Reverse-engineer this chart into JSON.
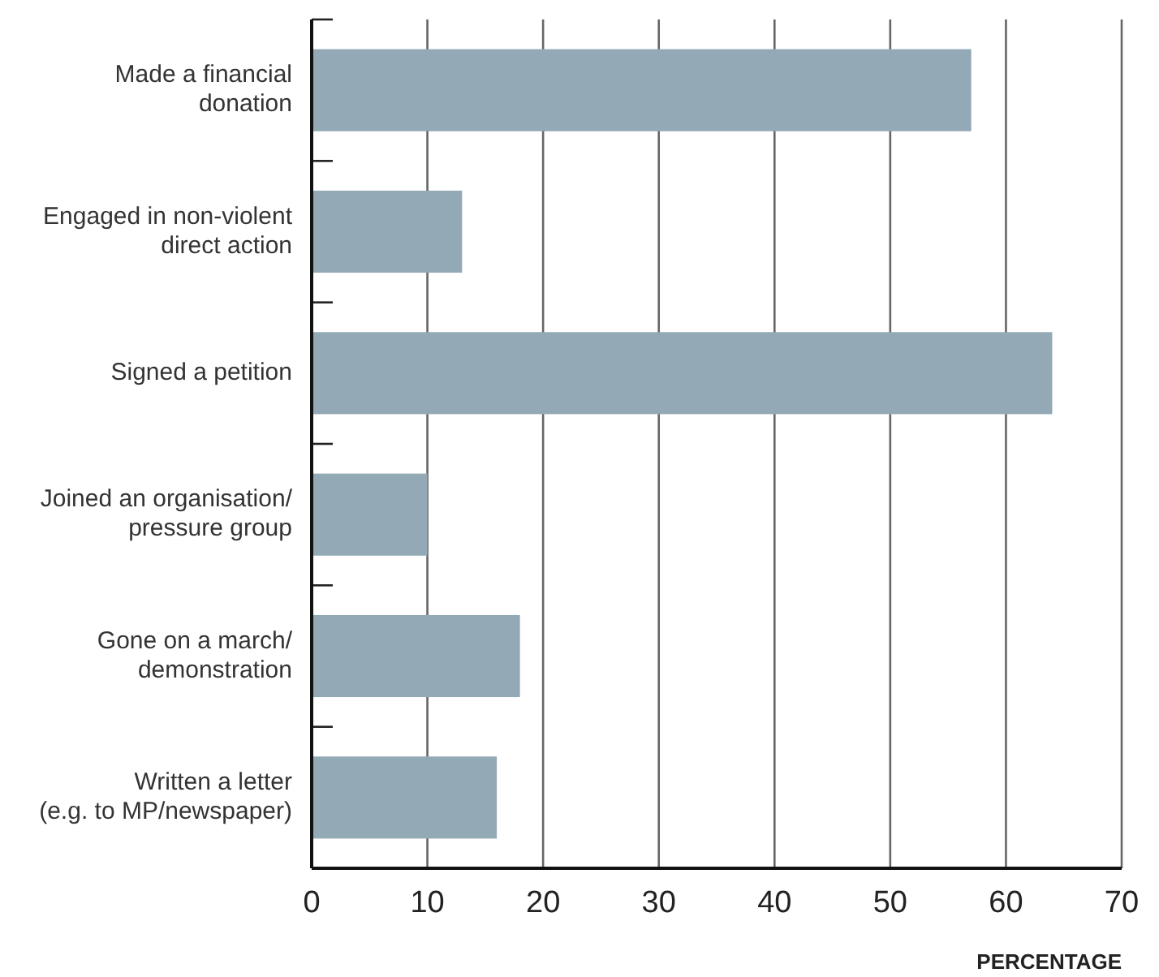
{
  "chart_data": {
    "type": "bar",
    "orientation": "horizontal",
    "xlabel": "PERCENTAGE",
    "categories": [
      "Made a financial\ndonation",
      "Engaged in non-violent\ndirect action",
      "Signed a petition",
      "Joined an organisation/\npressure group",
      "Gone on a march/\ndemonstration",
      "Written a letter\n(e.g. to MP/newspaper)"
    ],
    "values": [
      57,
      13,
      64,
      10,
      18,
      16
    ],
    "color": "#93a9b5",
    "xlim": [
      0,
      70
    ],
    "xticks": [
      0,
      10,
      20,
      30,
      40,
      50,
      60,
      70
    ],
    "grid": "x"
  }
}
